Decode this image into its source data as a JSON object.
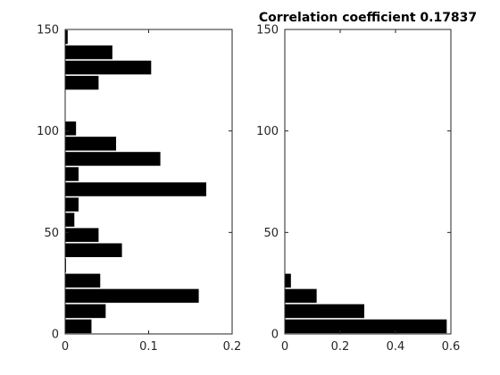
{
  "colors": {
    "bar": "#000000",
    "axis": "#262626",
    "background": "#ffffff"
  },
  "chart_data": [
    {
      "type": "bar",
      "orientation": "horizontal",
      "title": "",
      "xlabel": "",
      "ylabel": "",
      "xlim": [
        0,
        0.2
      ],
      "ylim": [
        0,
        150
      ],
      "x_ticks": [
        0,
        0.1,
        0.2
      ],
      "x_tick_labels": [
        "0",
        "0.1",
        "0.2"
      ],
      "y_ticks": [
        0,
        50,
        100,
        150
      ],
      "y_tick_labels": [
        "0",
        "50",
        "100",
        "150"
      ],
      "grid": false,
      "bar_height": 6.8,
      "bars": [
        {
          "y": 3.75,
          "value": 0.0315
        },
        {
          "y": 11.25,
          "value": 0.0485
        },
        {
          "y": 18.75,
          "value": 0.16
        },
        {
          "y": 26.25,
          "value": 0.042
        },
        {
          "y": 33.75,
          "value": 0.001
        },
        {
          "y": 41.25,
          "value": 0.068
        },
        {
          "y": 48.75,
          "value": 0.04
        },
        {
          "y": 56.25,
          "value": 0.011
        },
        {
          "y": 63.75,
          "value": 0.016
        },
        {
          "y": 71.25,
          "value": 0.169
        },
        {
          "y": 78.75,
          "value": 0.016
        },
        {
          "y": 86.25,
          "value": 0.114
        },
        {
          "y": 93.75,
          "value": 0.061
        },
        {
          "y": 101.25,
          "value": 0.013
        },
        {
          "y": 108.75,
          "value": 0.0
        },
        {
          "y": 116.25,
          "value": 0.0
        },
        {
          "y": 123.75,
          "value": 0.04
        },
        {
          "y": 131.25,
          "value": 0.103
        },
        {
          "y": 138.75,
          "value": 0.0565
        },
        {
          "y": 146.25,
          "value": 0.003
        }
      ]
    },
    {
      "type": "bar",
      "orientation": "horizontal",
      "title": "Correlation coefficient 0.17837",
      "xlabel": "",
      "ylabel": "",
      "xlim": [
        0,
        0.6
      ],
      "ylim": [
        0,
        150
      ],
      "x_ticks": [
        0,
        0.2,
        0.4,
        0.6
      ],
      "x_tick_labels": [
        "0",
        "0.2",
        "0.4",
        "0.6"
      ],
      "y_ticks": [
        0,
        50,
        100,
        150
      ],
      "y_tick_labels": [
        "0",
        "50",
        "100",
        "150"
      ],
      "grid": false,
      "bar_height": 6.8,
      "bars": [
        {
          "y": 3.75,
          "value": 0.585
        },
        {
          "y": 11.25,
          "value": 0.287
        },
        {
          "y": 18.75,
          "value": 0.115
        },
        {
          "y": 26.25,
          "value": 0.022
        }
      ]
    }
  ]
}
